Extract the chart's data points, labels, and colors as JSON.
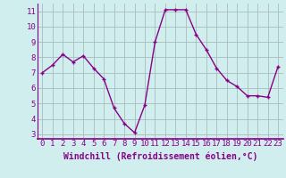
{
  "x": [
    0,
    1,
    2,
    3,
    4,
    5,
    6,
    7,
    8,
    9,
    10,
    11,
    12,
    13,
    14,
    15,
    16,
    17,
    18,
    19,
    20,
    21,
    22,
    23
  ],
  "y": [
    7.0,
    7.5,
    8.2,
    7.7,
    8.1,
    7.3,
    6.6,
    4.7,
    3.7,
    3.1,
    4.9,
    9.0,
    11.1,
    11.1,
    11.1,
    9.5,
    8.5,
    7.3,
    6.5,
    6.1,
    5.5,
    5.5,
    5.4,
    7.4
  ],
  "line_color": "#880088",
  "marker": "+",
  "marker_size": 3,
  "marker_linewidth": 1.0,
  "bg_color": "#d0eeee",
  "grid_color": "#aabbbb",
  "xlabel": "Windchill (Refroidissement éolien,°C)",
  "xlim": [
    -0.5,
    23.5
  ],
  "ylim": [
    2.7,
    11.5
  ],
  "yticks": [
    3,
    4,
    5,
    6,
    7,
    8,
    9,
    10,
    11
  ],
  "xticks": [
    0,
    1,
    2,
    3,
    4,
    5,
    6,
    7,
    8,
    9,
    10,
    11,
    12,
    13,
    14,
    15,
    16,
    17,
    18,
    19,
    20,
    21,
    22,
    23
  ],
  "xlabel_fontsize": 7,
  "tick_fontsize": 6.5,
  "line_width": 1.0
}
